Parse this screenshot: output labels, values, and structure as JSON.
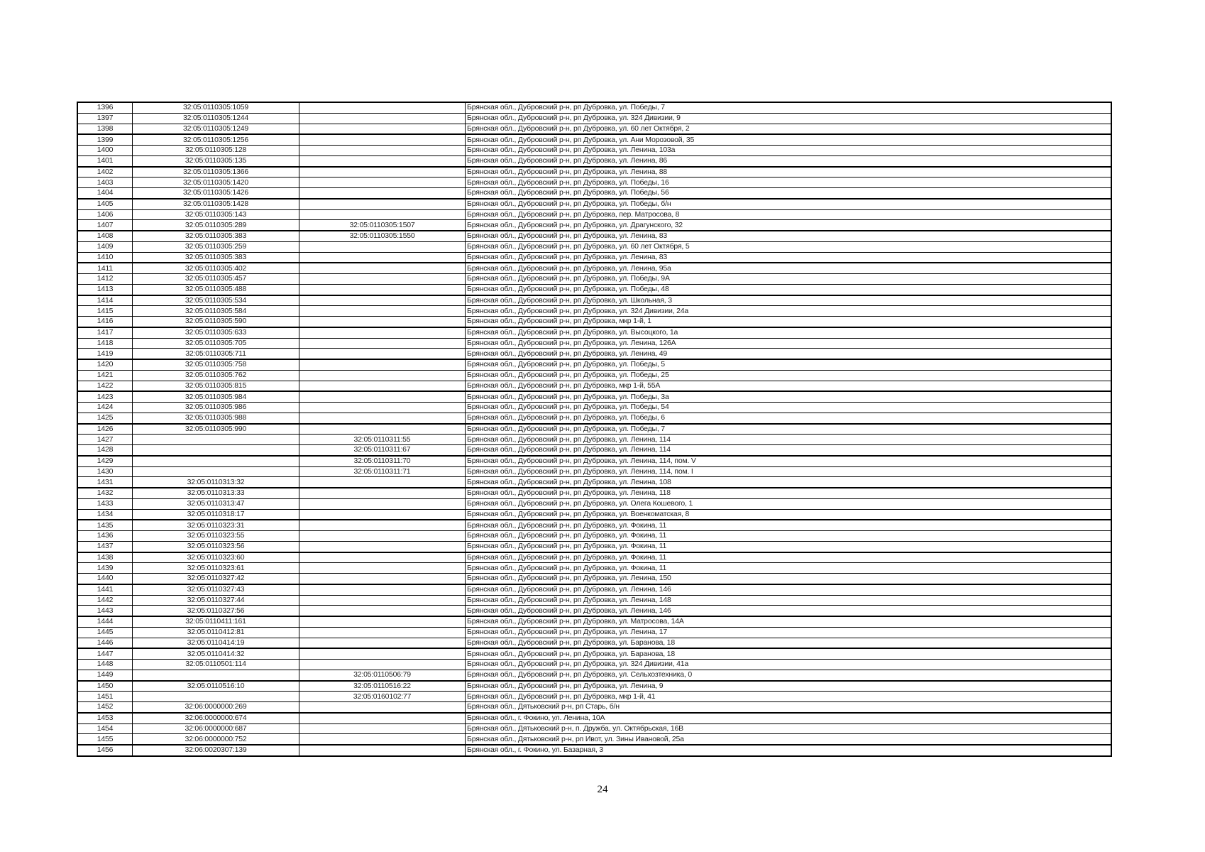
{
  "page_number": "24",
  "rows": [
    [
      "1396",
      "32:05:0110305:1059",
      "",
      "Брянская обл., Дубровский р-н, рп Дубровка, ул. Победы, 7"
    ],
    [
      "1397",
      "32:05:0110305:1244",
      "",
      "Брянская обл., Дубровский р-н, рп Дубровка, ул. 324 Дивизии, 9"
    ],
    [
      "1398",
      "32:05:0110305:1249",
      "",
      "Брянская обл., Дубровский р-н, рп Дубровка, ул. 60 лет Октября, 2"
    ],
    [
      "1399",
      "32:05:0110305:1256",
      "",
      "Брянская обл., Дубровский р-н, рп Дубровка, ул. Ани Морозовой, 35"
    ],
    [
      "1400",
      "32:05:0110305:128",
      "",
      "Брянская обл., Дубровский р-н, рп Дубровка, ул. Ленина, 103а"
    ],
    [
      "1401",
      "32:05:0110305:135",
      "",
      "Брянская обл., Дубровский р-н, рп Дубровка, ул. Ленина, 86"
    ],
    [
      "1402",
      "32:05:0110305:1366",
      "",
      "Брянская обл., Дубровский р-н, рп Дубровка, ул. Ленина, 88"
    ],
    [
      "1403",
      "32:05:0110305:1420",
      "",
      "Брянская обл., Дубровский р-н, рп Дубровка, ул. Победы, 16"
    ],
    [
      "1404",
      "32:05:0110305:1426",
      "",
      "Брянская обл., Дубровский р-н, рп Дубровка, ул. Победы, 56"
    ],
    [
      "1405",
      "32:05:0110305:1428",
      "",
      "Брянская обл., Дубровский р-н, рп Дубровка, ул. Победы, б/н"
    ],
    [
      "1406",
      "32:05:0110305:143",
      "",
      "Брянская обл., Дубровский р-н, рп Дубровка, пер. Матросова, 8"
    ],
    [
      "1407",
      "32:05:0110305:289",
      "32:05:0110305:1507",
      "Брянская обл., Дубровский р-н, рп Дубровка, ул. Драгунского, 32"
    ],
    [
      "1408",
      "32:05:0110305:383",
      "32:05:0110305:1550",
      "Брянская обл., Дубровский р-н, рп Дубровка, ул. Ленина, 83"
    ],
    [
      "1409",
      "32:05:0110305:259",
      "",
      "Брянская обл., Дубровский р-н, рп Дубровка, ул. 60 лет Октября, 5"
    ],
    [
      "1410",
      "32:05:0110305:383",
      "",
      "Брянская обл., Дубровский р-н, рп Дубровка, ул. Ленина, 83"
    ],
    [
      "1411",
      "32:05:0110305:402",
      "",
      "Брянская обл., Дубровский р-н, рп Дубровка, ул. Ленина, 95а"
    ],
    [
      "1412",
      "32:05:0110305:457",
      "",
      "Брянская обл., Дубровский р-н, рп Дубровка, ул. Победы, 9А"
    ],
    [
      "1413",
      "32:05:0110305:488",
      "",
      "Брянская обл., Дубровский р-н, рп Дубровка, ул. Победы, 48"
    ],
    [
      "1414",
      "32:05:0110305:534",
      "",
      "Брянская обл., Дубровский р-н, рп Дубровка, ул. Школьная, 3"
    ],
    [
      "1415",
      "32:05:0110305:584",
      "",
      "Брянская обл., Дубровский р-н, рп Дубровка, ул. 324 Дивизии, 24а"
    ],
    [
      "1416",
      "32:05:0110305:590",
      "",
      "Брянская обл., Дубровский р-н, рп Дубровка, мкр 1-й, 1"
    ],
    [
      "1417",
      "32:05:0110305:633",
      "",
      "Брянская обл., Дубровский р-н, рп Дубровка, ул. Высоцкого, 1а"
    ],
    [
      "1418",
      "32:05:0110305:705",
      "",
      "Брянская обл., Дубровский р-н, рп Дубровка, ул. Ленина, 126А"
    ],
    [
      "1419",
      "32:05:0110305:711",
      "",
      "Брянская обл., Дубровский р-н, рп Дубровка, ул. Ленина, 49"
    ],
    [
      "1420",
      "32:05:0110305:758",
      "",
      "Брянская обл., Дубровский р-н, рп Дубровка, ул. Победы, 5"
    ],
    [
      "1421",
      "32:05:0110305:762",
      "",
      "Брянская обл., Дубровский р-н, рп Дубровка, ул. Победы, 25"
    ],
    [
      "1422",
      "32:05:0110305:815",
      "",
      "Брянская обл., Дубровский р-н, рп Дубровка, мкр 1-й, 55А"
    ],
    [
      "1423",
      "32:05:0110305:984",
      "",
      "Брянская обл., Дубровский р-н, рп Дубровка, ул. Победы, 3а"
    ],
    [
      "1424",
      "32:05:0110305:986",
      "",
      "Брянская обл., Дубровский р-н, рп Дубровка, ул. Победы, 54"
    ],
    [
      "1425",
      "32:05:0110305:988",
      "",
      "Брянская обл., Дубровский р-н, рп Дубровка, ул. Победы, 6"
    ],
    [
      "1426",
      "32:05:0110305:990",
      "",
      "Брянская обл., Дубровский р-н, рп Дубровка, ул. Победы, 7"
    ],
    [
      "1427",
      "",
      "32:05:0110311:55",
      "Брянская обл., Дубровский р-н, рп Дубровка, ул. Ленина, 114"
    ],
    [
      "1428",
      "",
      "32:05:0110311:67",
      "Брянская обл., Дубровский р-н, рп Дубровка, ул. Ленина, 114"
    ],
    [
      "1429",
      "",
      "32:05:0110311:70",
      "Брянская обл., Дубровский р-н, рп Дубровка, ул. Ленина, 114, пом. V"
    ],
    [
      "1430",
      "",
      "32:05:0110311:71",
      "Брянская обл., Дубровский р-н, рп Дубровка, ул. Ленина, 114, пом. I"
    ],
    [
      "1431",
      "32:05:0110313:32",
      "",
      "Брянская обл., Дубровский р-н, рп Дубровка, ул. Ленина, 108"
    ],
    [
      "1432",
      "32:05:0110313:33",
      "",
      "Брянская обл., Дубровский р-н, рп Дубровка, ул. Ленина, 118"
    ],
    [
      "1433",
      "32:05:0110313:47",
      "",
      "Брянская обл., Дубровский р-н, рп Дубровка, ул. Олега Кошевого, 1"
    ],
    [
      "1434",
      "32:05:0110318:17",
      "",
      "Брянская обл., Дубровский р-н, рп Дубровка, ул. Военкоматская, 8"
    ],
    [
      "1435",
      "32:05:0110323:31",
      "",
      "Брянская обл., Дубровский р-н, рп Дубровка, ул. Фокина, 11"
    ],
    [
      "1436",
      "32:05:0110323:55",
      "",
      "Брянская обл., Дубровский р-н, рп Дубровка, ул. Фокина, 11"
    ],
    [
      "1437",
      "32:05:0110323:56",
      "",
      "Брянская обл., Дубровский р-н, рп Дубровка, ул. Фокина, 11"
    ],
    [
      "1438",
      "32:05:0110323:60",
      "",
      "Брянская обл., Дубровский р-н, рп Дубровка, ул. Фокина, 11"
    ],
    [
      "1439",
      "32:05:0110323:61",
      "",
      "Брянская обл., Дубровский р-н, рп Дубровка, ул. Фокина, 11"
    ],
    [
      "1440",
      "32:05:0110327:42",
      "",
      "Брянская обл., Дубровский р-н, рп Дубровка, ул. Ленина, 150"
    ],
    [
      "1441",
      "32:05:0110327:43",
      "",
      "Брянская обл., Дубровский р-н, рп Дубровка, ул. Ленина, 146"
    ],
    [
      "1442",
      "32:05:0110327:44",
      "",
      "Брянская обл., Дубровский р-н, рп Дубровка, ул. Ленина, 148"
    ],
    [
      "1443",
      "32:05:0110327:56",
      "",
      "Брянская обл., Дубровский р-н, рп Дубровка, ул. Ленина, 146"
    ],
    [
      "1444",
      "32:05:0110411:161",
      "",
      "Брянская обл., Дубровский р-н, рп Дубровка, ул. Матросова, 14А"
    ],
    [
      "1445",
      "32:05:0110412:81",
      "",
      "Брянская обл., Дубровский р-н, рп Дубровка, ул. Ленина, 17"
    ],
    [
      "1446",
      "32:05:0110414:19",
      "",
      "Брянская обл., Дубровский р-н, рп Дубровка, ул. Баранова, 18"
    ],
    [
      "1447",
      "32:05:0110414:32",
      "",
      "Брянская обл., Дубровский р-н, рп Дубровка, ул. Баранова, 18"
    ],
    [
      "1448",
      "32:05:0110501:114",
      "",
      "Брянская обл., Дубровский р-н, рп Дубровка, ул. 324 Дивизии, 41а"
    ],
    [
      "1449",
      "",
      "32:05:0110506:79",
      "Брянская обл., Дубровский р-н, рп Дубровка, ул. Сельхозтехника, 0"
    ],
    [
      "1450",
      "32:05:0110516:10",
      "32:05:0110516:22",
      "Брянская обл., Дубровский р-н, рп Дубровка, ул. Ленина, 9"
    ],
    [
      "1451",
      "",
      "32:05:0160102:77",
      "Брянская обл., Дубровский р-н, рп Дубровка, мкр 1-й, 41"
    ],
    [
      "1452",
      "32:06:0000000:269",
      "",
      "Брянская обл., Дятьковский р-н, рп Старь, б/н"
    ],
    [
      "1453",
      "32:06:0000000:674",
      "",
      "Брянская обл., г. Фокино, ул. Ленина, 10А"
    ],
    [
      "1454",
      "32:06:0000000:687",
      "",
      "Брянская обл., Дятьковский р-н, п. Дружба, ул. Октябрьская, 16В"
    ],
    [
      "1455",
      "32:06:0000000:752",
      "",
      "Брянская обл., Дятьковский р-н, рп Ивот, ул. Зины Ивановой, 25а"
    ],
    [
      "1456",
      "32:06:0020307:139",
      "",
      "Брянская обл., г. Фокино, ул. Базарная, 3"
    ]
  ]
}
